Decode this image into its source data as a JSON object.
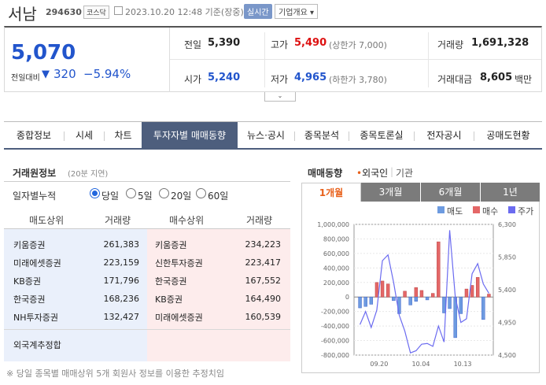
{
  "header": {
    "stock_name": "서남",
    "stock_code": "294630",
    "market": "코스닥",
    "datetime": "2023.10.20 12:48 기준(장중)",
    "realtime": "실시간",
    "company_overview": "기업개요 ▾"
  },
  "price": {
    "current": "5,070",
    "change_label": "전일대비",
    "change_arrow": "▼",
    "change_value": "320",
    "change_pct": "−5.94%",
    "prev_close_label": "전일",
    "prev_close": "5,390",
    "high_label": "고가",
    "high": "5,490",
    "upper_limit": "(상한가 7,000)",
    "volume_label": "거래량",
    "volume": "1,691,328",
    "open_label": "시가",
    "open": "5,240",
    "low_label": "저가",
    "low": "4,965",
    "lower_limit": "(하한가 3,780)",
    "amount_label": "거래대금",
    "amount": "8,605",
    "amount_unit": "백만"
  },
  "tabs": [
    "종합정보",
    "시세",
    "차트",
    "투자자별 매매동향",
    "뉴스·공시",
    "종목분석",
    "종목토론실",
    "전자공시",
    "공매도현황"
  ],
  "active_tab": "투자자별 매매동향",
  "broker": {
    "title": "거래원정보",
    "subtitle": "(20분 지연)",
    "period_label": "일자별누적",
    "options": [
      "당일",
      "5일",
      "20일",
      "60일"
    ],
    "selected": "당일",
    "headers": [
      "매도상위",
      "거래량",
      "매수상위",
      "거래량"
    ],
    "rows": [
      {
        "sell": "키움증권",
        "sell_vol": "261,383",
        "buy": "키움증권",
        "buy_vol": "234,223"
      },
      {
        "sell": "미래에셋증권",
        "sell_vol": "223,159",
        "buy": "신한투자증권",
        "buy_vol": "223,417"
      },
      {
        "sell": "KB증권",
        "sell_vol": "171,796",
        "buy": "한국증권",
        "buy_vol": "167,552"
      },
      {
        "sell": "한국증권",
        "sell_vol": "168,236",
        "buy": "KB증권",
        "buy_vol": "164,490"
      },
      {
        "sell": "NH투자증권",
        "sell_vol": "132,427",
        "buy": "미래에셋증권",
        "buy_vol": "160,539"
      }
    ],
    "foreign_label": "외국계추정합",
    "footnote": "※ 당일 종목별 매매상위 5개 회원사 정보를 이용한 추정치임"
  },
  "trading": {
    "title": "매매동향",
    "foreign": "외국인",
    "institution": "기관",
    "periods": [
      "1개월",
      "3개월",
      "6개월",
      "1년"
    ],
    "active_period": "1개월"
  },
  "chart_data": {
    "type": "bar",
    "legend": [
      "매도",
      "매수",
      "주가"
    ],
    "colors": {
      "sell": "#6d9be0",
      "buy": "#e46767",
      "price": "#6b6bf0"
    },
    "y_left": {
      "min": -800000,
      "max": 1000000,
      "ticks": [
        "1,000,000",
        "800,000",
        "600,000",
        "400,000",
        "200,000",
        "0",
        "-200,000",
        "-400,000",
        "-600,000",
        "-800,000"
      ]
    },
    "y_right": {
      "min": 4500,
      "max": 6300,
      "ticks": [
        "6,300",
        "5,850",
        "5,400",
        "4,950",
        "4,500"
      ]
    },
    "x_labels": [
      "09.20",
      "10.04",
      "10.13"
    ],
    "bars": [
      {
        "sell": -150000,
        "buy": 0
      },
      {
        "sell": -130000,
        "buy": 0
      },
      {
        "sell": -100000,
        "buy": 0
      },
      {
        "sell": 0,
        "buy": 200000
      },
      {
        "sell": 0,
        "buy": 220000
      },
      {
        "sell": 0,
        "buy": 180000
      },
      {
        "sell": -50000,
        "buy": 0
      },
      {
        "sell": -230000,
        "buy": 0
      },
      {
        "sell": 0,
        "buy": 80000
      },
      {
        "sell": -110000,
        "buy": 0
      },
      {
        "sell": -60000,
        "buy": 130000
      },
      {
        "sell": 0,
        "buy": 90000
      },
      {
        "sell": -40000,
        "buy": 0
      },
      {
        "sell": 0,
        "buy": 50000
      },
      {
        "sell": 0,
        "buy": 760000
      },
      {
        "sell": -220000,
        "buy": 0
      },
      {
        "sell": -160000,
        "buy": 0
      },
      {
        "sell": -560000,
        "buy": 0
      },
      {
        "sell": -230000,
        "buy": 0
      },
      {
        "sell": 0,
        "buy": 110000
      },
      {
        "sell": 0,
        "buy": 160000
      },
      {
        "sell": 0,
        "buy": 270000
      },
      {
        "sell": -310000,
        "buy": 0
      },
      {
        "sell": 0,
        "buy": 40000
      }
    ],
    "price": [
      4920,
      5100,
      4880,
      5120,
      5800,
      5880,
      5500,
      5050,
      4830,
      4530,
      4560,
      4650,
      4660,
      4620,
      4900,
      4680,
      6220,
      5300,
      4950,
      5000,
      5620,
      5760,
      5480,
      5350
    ]
  }
}
